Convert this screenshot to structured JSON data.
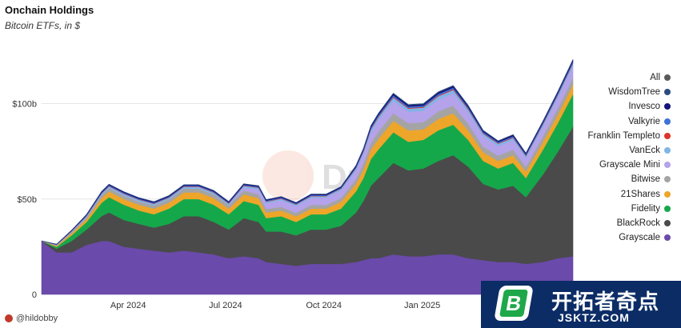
{
  "header": {
    "title": "Onchain Holdings",
    "subtitle": "Bitcoin ETFs, in $"
  },
  "footer": {
    "author": "@hildobby"
  },
  "watermark": {
    "text": "Dune"
  },
  "promo": {
    "logo_letter": "B",
    "name": "开拓者奇点",
    "url": "JSKTZ.COM"
  },
  "chart_data": {
    "type": "area",
    "stacked": true,
    "title": "Onchain Holdings",
    "subtitle": "Bitcoin ETFs, in $",
    "xlabel": "",
    "ylabel": "",
    "ylim": [
      0,
      130000000000
    ],
    "y_ticks": [
      0,
      50000000000,
      100000000000
    ],
    "y_tick_labels": [
      "0",
      "$50b",
      "$100b"
    ],
    "x_tick_labels": [
      "Apr 2024",
      "Jul 2024",
      "Oct 2024",
      "Jan 2025"
    ],
    "x_tick_dates": [
      "2024-04-01",
      "2024-07-01",
      "2024-10-01",
      "2025-01-01"
    ],
    "x_range": [
      "2024-01-11",
      "2025-05-22"
    ],
    "legend_position": "right",
    "legend_order": [
      "All",
      "WisdomTree",
      "Invesco",
      "Valkyrie",
      "Franklin Templeto",
      "VanEck",
      "Grayscale Mini",
      "Bitwise",
      "21Shares",
      "Fidelity",
      "BlackRock",
      "Grayscale"
    ],
    "colors": {
      "All": "#5a5a5a",
      "WisdomTree": "#2b4a7e",
      "Invesco": "#16147a",
      "Valkyrie": "#3d72d8",
      "Franklin Templeto": "#e0322b",
      "VanEck": "#82b4e6",
      "Grayscale Mini": "#b4a2ea",
      "Bitwise": "#a4a4a4",
      "21Shares": "#eda52a",
      "Fidelity": "#15a84a",
      "BlackRock": "#4a4a4a",
      "Grayscale": "#6a4aaa"
    },
    "x": [
      "2024-01-11",
      "2024-01-25",
      "2024-02-08",
      "2024-02-22",
      "2024-03-07",
      "2024-03-14",
      "2024-03-28",
      "2024-04-11",
      "2024-04-25",
      "2024-05-09",
      "2024-05-23",
      "2024-06-06",
      "2024-06-20",
      "2024-07-04",
      "2024-07-18",
      "2024-08-01",
      "2024-08-08",
      "2024-08-22",
      "2024-09-05",
      "2024-09-19",
      "2024-10-03",
      "2024-10-17",
      "2024-10-31",
      "2024-11-07",
      "2024-11-14",
      "2024-11-21",
      "2024-12-05",
      "2024-12-19",
      "2025-01-02",
      "2025-01-16",
      "2025-01-30",
      "2025-02-13",
      "2025-02-27",
      "2025-03-13",
      "2025-03-27",
      "2025-04-08",
      "2025-04-24",
      "2025-05-08",
      "2025-05-22"
    ],
    "series": [
      {
        "name": "Grayscale",
        "values": [
          28,
          22,
          22,
          26,
          28,
          28,
          25,
          24,
          23,
          22,
          23,
          22,
          21,
          19,
          20,
          19,
          17,
          16,
          15,
          16,
          16,
          16,
          17,
          18,
          19,
          19,
          21,
          20,
          20,
          21,
          21,
          19,
          18,
          17,
          17,
          16,
          17,
          19,
          20
        ]
      },
      {
        "name": "BlackRock",
        "values": [
          0,
          2,
          6,
          8,
          13,
          15,
          14,
          13,
          12,
          15,
          18,
          19,
          17,
          15,
          20,
          19,
          16,
          17,
          16,
          18,
          18,
          20,
          26,
          31,
          38,
          42,
          48,
          45,
          46,
          49,
          52,
          48,
          40,
          38,
          40,
          35,
          46,
          56,
          68
        ]
      },
      {
        "name": "Fidelity",
        "values": [
          0,
          1,
          3,
          4,
          7,
          8,
          8,
          7,
          7,
          8,
          9,
          9,
          9,
          8,
          9,
          9,
          7,
          8,
          7,
          8,
          8,
          9,
          11,
          12,
          14,
          15,
          16,
          15,
          15,
          16,
          16,
          14,
          12,
          11,
          12,
          10,
          13,
          15,
          17
        ]
      },
      {
        "name": "21Shares",
        "values": [
          0,
          0.5,
          1,
          1.5,
          2.5,
          3,
          3,
          3,
          3,
          3,
          3.5,
          3.5,
          3.5,
          3,
          3.5,
          3.5,
          3,
          3,
          3,
          3,
          3,
          3.5,
          4,
          4.5,
          5,
          5.5,
          6,
          6,
          5.5,
          6,
          6,
          5,
          4.5,
          4,
          4,
          3.5,
          4,
          4.5,
          5
        ]
      },
      {
        "name": "Bitwise",
        "values": [
          0,
          0.3,
          0.7,
          1,
          1.5,
          1.8,
          1.8,
          1.7,
          1.7,
          1.8,
          2,
          2,
          2,
          1.8,
          2,
          2,
          1.8,
          1.9,
          1.8,
          1.9,
          1.9,
          2,
          2.5,
          3,
          3.5,
          3.8,
          4,
          3.8,
          3.8,
          4,
          4,
          3.5,
          3,
          2.8,
          2.9,
          2.5,
          3,
          3.3,
          3.6
        ]
      },
      {
        "name": "Grayscale Mini",
        "values": [
          0,
          0,
          0,
          0,
          0,
          0,
          0,
          0,
          0,
          0,
          0,
          0,
          0,
          0,
          1.5,
          2.5,
          3,
          3.5,
          3.5,
          3.8,
          3.8,
          4,
          4.5,
          5,
          5.5,
          6,
          6.5,
          6,
          6,
          6.2,
          6.5,
          6,
          5.5,
          5,
          5,
          4.5,
          5,
          5.5,
          6
        ]
      },
      {
        "name": "VanEck",
        "values": [
          0,
          0.2,
          0.4,
          0.6,
          0.8,
          0.9,
          0.9,
          0.9,
          0.8,
          0.9,
          0.9,
          0.9,
          0.9,
          0.8,
          0.9,
          0.9,
          0.8,
          0.8,
          0.8,
          0.8,
          0.8,
          0.9,
          1.1,
          1.3,
          1.5,
          1.6,
          1.7,
          1.6,
          1.6,
          1.7,
          1.7,
          1.5,
          1.3,
          1.2,
          1.2,
          1.1,
          1.3,
          1.4,
          1.5
        ]
      },
      {
        "name": "Franklin Templeto",
        "values": [
          0,
          0.1,
          0.1,
          0.1,
          0.2,
          0.2,
          0.2,
          0.2,
          0.2,
          0.2,
          0.2,
          0.2,
          0.2,
          0.2,
          0.2,
          0.2,
          0.2,
          0.2,
          0.2,
          0.2,
          0.2,
          0.2,
          0.3,
          0.3,
          0.4,
          0.4,
          0.4,
          0.4,
          0.4,
          0.4,
          0.4,
          0.4,
          0.3,
          0.3,
          0.3,
          0.3,
          0.3,
          0.4,
          0.4
        ]
      },
      {
        "name": "Valkyrie",
        "values": [
          0,
          0.1,
          0.2,
          0.3,
          0.4,
          0.4,
          0.4,
          0.4,
          0.4,
          0.4,
          0.4,
          0.4,
          0.4,
          0.4,
          0.4,
          0.4,
          0.4,
          0.4,
          0.4,
          0.4,
          0.4,
          0.4,
          0.5,
          0.6,
          0.7,
          0.7,
          0.8,
          0.7,
          0.7,
          0.8,
          0.8,
          0.7,
          0.6,
          0.5,
          0.6,
          0.5,
          0.6,
          0.6,
          0.7
        ]
      },
      {
        "name": "Invesco",
        "values": [
          0,
          0.1,
          0.2,
          0.3,
          0.4,
          0.4,
          0.4,
          0.4,
          0.4,
          0.4,
          0.4,
          0.4,
          0.4,
          0.4,
          0.4,
          0.4,
          0.4,
          0.4,
          0.4,
          0.4,
          0.4,
          0.4,
          0.5,
          0.6,
          0.7,
          0.7,
          0.8,
          0.7,
          0.7,
          0.8,
          0.8,
          0.7,
          0.6,
          0.5,
          0.6,
          0.5,
          0.6,
          0.6,
          0.7
        ]
      },
      {
        "name": "WisdomTree",
        "values": [
          0,
          0.05,
          0.05,
          0.1,
          0.1,
          0.1,
          0.1,
          0.1,
          0.1,
          0.1,
          0.1,
          0.1,
          0.1,
          0.1,
          0.1,
          0.1,
          0.1,
          0.1,
          0.1,
          0.1,
          0.1,
          0.1,
          0.2,
          0.2,
          0.2,
          0.2,
          0.3,
          0.3,
          0.3,
          0.3,
          0.3,
          0.3,
          0.2,
          0.2,
          0.2,
          0.2,
          0.2,
          0.3,
          0.3
        ]
      }
    ],
    "values_unit": "billions USD"
  }
}
